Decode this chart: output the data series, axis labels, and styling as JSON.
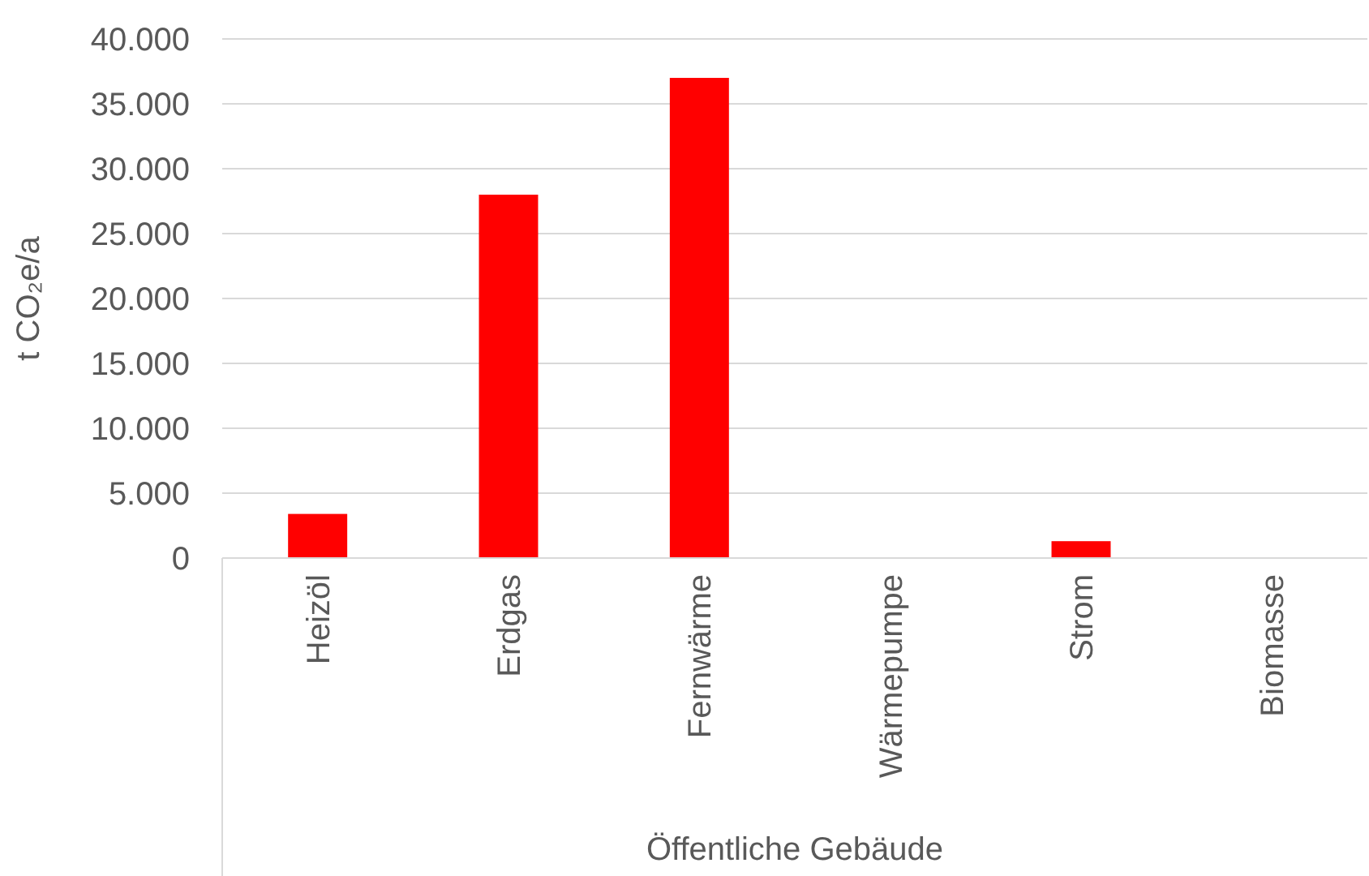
{
  "chart_data": {
    "type": "bar",
    "ylabel": "t CO₂e/a",
    "xlabel": "Öffentliche Gebäude",
    "categories": [
      "Heizöl",
      "Erdgas",
      "Fernwärme",
      "Wärmepumpe",
      "Strom",
      "Biomasse"
    ],
    "values": [
      3400,
      28000,
      37000,
      0,
      1300,
      0
    ],
    "color": "#ff0000",
    "ylim": [
      0,
      40000
    ],
    "yticks": [
      0,
      {
        "value": 5000,
        "label": "5.000"
      },
      {
        "value": 10000,
        "label": "10.000"
      },
      {
        "value": 15000,
        "label": "15.000"
      },
      {
        "value": 20000,
        "label": "20.000"
      },
      {
        "value": 25000,
        "label": "25.000"
      },
      {
        "value": 30000,
        "label": "30.000"
      },
      {
        "value": 35000,
        "label": "35.000"
      },
      {
        "value": 40000,
        "label": "40.000"
      }
    ],
    "grid": "y"
  }
}
